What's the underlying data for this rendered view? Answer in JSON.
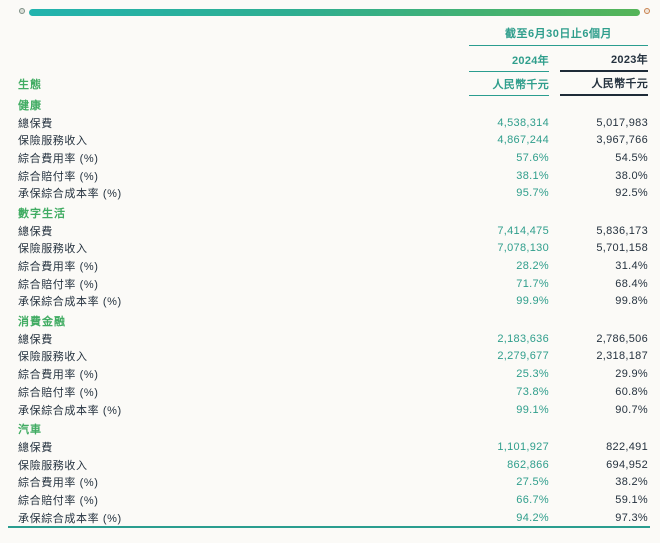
{
  "header": {
    "period": "截至6月30日止6個月",
    "col_2024": "2024年",
    "col_2023": "2023年",
    "unit": "人民幣千元",
    "ecosystem": "生態"
  },
  "metrics": [
    "總保費",
    "保險服務收入",
    "綜合費用率 (%)",
    "綜合賠付率 (%)",
    "承保綜合成本率 (%)"
  ],
  "sections": [
    {
      "name": "健康",
      "values_2024": [
        "4,538,314",
        "4,867,244",
        "57.6%",
        "38.1%",
        "95.7%"
      ],
      "values_2023": [
        "5,017,983",
        "3,967,766",
        "54.5%",
        "38.0%",
        "92.5%"
      ]
    },
    {
      "name": "數字生活",
      "values_2024": [
        "7,414,475",
        "7,078,130",
        "28.2%",
        "71.7%",
        "99.9%"
      ],
      "values_2023": [
        "5,836,173",
        "5,701,158",
        "31.4%",
        "68.4%",
        "99.8%"
      ]
    },
    {
      "name": "消費金融",
      "values_2024": [
        "2,183,636",
        "2,279,677",
        "25.3%",
        "73.8%",
        "99.1%"
      ],
      "values_2023": [
        "2,786,506",
        "2,318,187",
        "29.9%",
        "60.8%",
        "90.7%"
      ]
    },
    {
      "name": "汽車",
      "values_2024": [
        "1,101,927",
        "862,866",
        "27.5%",
        "66.7%",
        "94.2%"
      ],
      "values_2023": [
        "822,491",
        "694,952",
        "38.2%",
        "59.1%",
        "97.3%"
      ]
    }
  ],
  "colors": {
    "accent_teal": "#2A9D8F",
    "teal_text": "#2F9E8C",
    "green_text": "#41AC63",
    "dark_text": "#25323F",
    "bar_start": "#22B3AE",
    "bar_end": "#55B458",
    "handle_ring": "#C9824F",
    "background": "#FBFAF7"
  }
}
